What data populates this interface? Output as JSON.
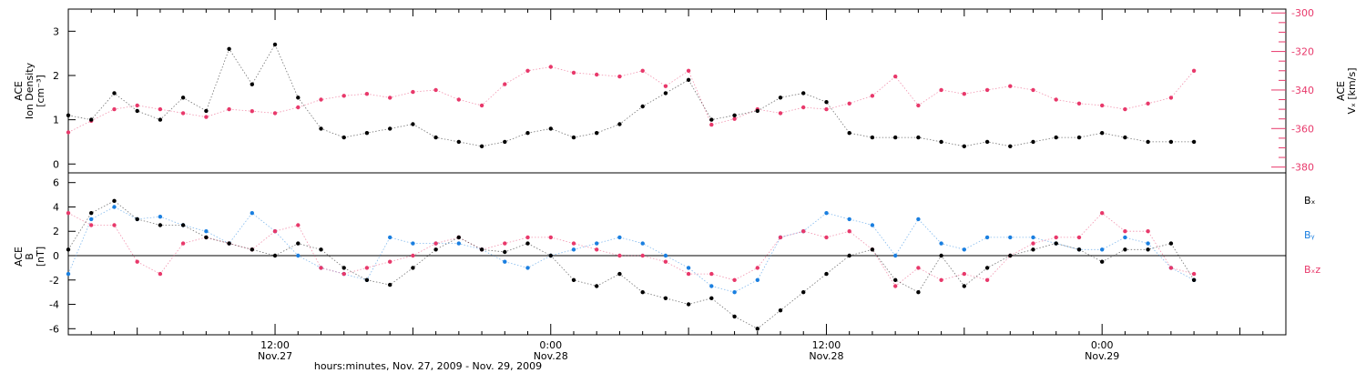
{
  "figure": {
    "x_title": "hours:minutes, Nov. 27, 2009 - Nov. 29, 2009",
    "x_ticks": [
      {
        "t": 12,
        "time": "12:00",
        "date": "Nov.27"
      },
      {
        "t": 24,
        "time": "0:00",
        "date": "Nov.28"
      },
      {
        "t": 36,
        "time": "12:00",
        "date": "Nov.28"
      },
      {
        "t": 48,
        "time": "0:00",
        "date": "Nov.29"
      }
    ],
    "x_range_hours": [
      3,
      56
    ]
  },
  "chart_data": [
    {
      "type": "scatter",
      "panel": "top",
      "ylabel_left": [
        "ACE",
        "Ion Density",
        "[cm⁻³]"
      ],
      "ylabel_right": [
        "ACE",
        "Vₓ [km/s]"
      ],
      "ylim_left": [
        -0.2,
        3.5
      ],
      "yticks_left": [
        0,
        1,
        2,
        3
      ],
      "ylim_right": [
        -383,
        -298
      ],
      "yticks_right": [
        -300,
        -320,
        -340,
        -360,
        -380
      ],
      "x_units": "hours since Nov. 27, 2009 00:00",
      "series": [
        {
          "axis": "left",
          "color": "#000000",
          "x": [
            3,
            4,
            5,
            6,
            7,
            8,
            9,
            10,
            11,
            12,
            13,
            14,
            15,
            16,
            17,
            18,
            19,
            20,
            21,
            22,
            23,
            24,
            25,
            26,
            27,
            28,
            29,
            30,
            31,
            32,
            33,
            34,
            35,
            36,
            37,
            38,
            39,
            40,
            41,
            42,
            43,
            44,
            45,
            46,
            47,
            48,
            49,
            50,
            51,
            52
          ],
          "y": [
            1.1,
            1.0,
            1.6,
            1.2,
            1.0,
            1.5,
            1.2,
            2.6,
            1.8,
            2.7,
            1.5,
            0.8,
            0.6,
            0.7,
            0.8,
            0.9,
            0.6,
            0.5,
            0.4,
            0.5,
            0.7,
            0.8,
            0.6,
            0.7,
            0.9,
            1.3,
            1.6,
            1.9,
            1.0,
            1.1,
            1.2,
            1.5,
            1.6,
            1.4,
            0.7,
            0.6,
            0.6,
            0.6,
            0.5,
            0.4,
            0.5,
            0.4,
            0.5,
            0.6,
            0.6,
            0.7,
            0.6,
            0.5,
            0.5,
            0.5
          ]
        },
        {
          "axis": "right",
          "color": "#e8396b",
          "x": [
            3,
            4,
            5,
            6,
            7,
            8,
            9,
            10,
            11,
            12,
            13,
            14,
            15,
            16,
            17,
            18,
            19,
            20,
            21,
            22,
            23,
            24,
            25,
            26,
            27,
            28,
            29,
            30,
            31,
            32,
            33,
            34,
            35,
            36,
            37,
            38,
            39,
            40,
            41,
            42,
            43,
            44,
            45,
            46,
            47,
            48,
            49,
            50,
            51,
            52
          ],
          "y": [
            -362,
            -356,
            -350,
            -348,
            -350,
            -352,
            -354,
            -350,
            -351,
            -352,
            -349,
            -345,
            -343,
            -342,
            -344,
            -341,
            -340,
            -345,
            -348,
            -337,
            -330,
            -328,
            -331,
            -332,
            -333,
            -330,
            -338,
            -330,
            -358,
            -355,
            -350,
            -352,
            -349,
            -350,
            -347,
            -343,
            -333,
            -348,
            -340,
            -342,
            -340,
            -338,
            -340,
            -345,
            -347,
            -348,
            -350,
            -347,
            -344,
            -330
          ]
        }
      ]
    },
    {
      "type": "scatter",
      "panel": "bottom",
      "ylabel_left": [
        "ACE",
        "B",
        "[nT]"
      ],
      "ylim": [
        -6.5,
        6.8
      ],
      "yticks": [
        -6,
        -4,
        -2,
        0,
        2,
        4,
        6
      ],
      "zero_line": true,
      "x_units": "hours since Nov. 27, 2009 00:00",
      "series": [
        {
          "name": "Bₓ",
          "color": "#000000",
          "x": [
            3,
            4,
            5,
            6,
            7,
            8,
            9,
            10,
            11,
            12,
            13,
            14,
            15,
            16,
            17,
            18,
            19,
            20,
            21,
            22,
            23,
            24,
            25,
            26,
            27,
            28,
            29,
            30,
            31,
            32,
            33,
            34,
            35,
            36,
            37,
            38,
            39,
            40,
            41,
            42,
            43,
            44,
            45,
            46,
            47,
            48,
            49,
            50,
            51,
            52
          ],
          "y": [
            0.5,
            3.5,
            4.5,
            3.0,
            2.5,
            2.5,
            1.5,
            1.0,
            0.5,
            0.0,
            1.0,
            0.5,
            -1.0,
            -2.0,
            -2.4,
            -1.0,
            0.5,
            1.5,
            0.5,
            0.3,
            1.0,
            0.0,
            -2.0,
            -2.5,
            -1.5,
            -3.0,
            -3.5,
            -4.0,
            -3.5,
            -5.0,
            -6.0,
            -4.5,
            -3.0,
            -1.5,
            0.0,
            0.5,
            -2.0,
            -3.0,
            0.0,
            -2.5,
            -1.0,
            0.0,
            0.5,
            1.0,
            0.5,
            -0.5,
            0.5,
            0.5,
            1.0,
            -2.0
          ]
        },
        {
          "name": "Bᵧ",
          "color": "#1a7fe0",
          "x": [
            3,
            4,
            5,
            6,
            7,
            8,
            9,
            10,
            11,
            12,
            13,
            14,
            15,
            16,
            17,
            18,
            19,
            20,
            21,
            22,
            23,
            24,
            25,
            26,
            27,
            28,
            29,
            30,
            31,
            32,
            33,
            34,
            35,
            36,
            37,
            38,
            39,
            40,
            41,
            42,
            43,
            44,
            45,
            46,
            47,
            48,
            49,
            50,
            51,
            52
          ],
          "y": [
            -1.5,
            3.0,
            4.0,
            3.0,
            3.2,
            2.5,
            2.0,
            1.0,
            3.5,
            2.0,
            0.0,
            -1.0,
            -1.5,
            -2.0,
            1.5,
            1.0,
            1.0,
            1.0,
            0.5,
            -0.5,
            -1.0,
            0.0,
            0.5,
            1.0,
            1.5,
            1.0,
            0.0,
            -1.0,
            -2.5,
            -3.0,
            -2.0,
            1.5,
            2.0,
            3.5,
            3.0,
            2.5,
            0.0,
            3.0,
            1.0,
            0.5,
            1.5,
            1.5,
            1.5,
            1.0,
            0.5,
            0.5,
            1.5,
            1.0,
            -1.0,
            -2.0
          ]
        },
        {
          "name": "Bₓz",
          "color": "#e8396b",
          "x": [
            3,
            4,
            5,
            6,
            7,
            8,
            9,
            10,
            11,
            12,
            13,
            14,
            15,
            16,
            17,
            18,
            19,
            20,
            21,
            22,
            23,
            24,
            25,
            26,
            27,
            28,
            29,
            30,
            31,
            32,
            33,
            34,
            35,
            36,
            37,
            38,
            39,
            40,
            41,
            42,
            43,
            44,
            45,
            46,
            47,
            48,
            49,
            50,
            51,
            52
          ],
          "y": [
            3.5,
            2.5,
            2.5,
            -0.5,
            -1.5,
            1.0,
            1.5,
            1.0,
            0.5,
            2.0,
            2.5,
            -1.0,
            -1.5,
            -1.0,
            -0.5,
            0.0,
            1.0,
            1.5,
            0.5,
            1.0,
            1.5,
            1.5,
            1.0,
            0.5,
            0.0,
            0.0,
            -0.5,
            -1.5,
            -1.5,
            -2.0,
            -1.0,
            1.5,
            2.0,
            1.5,
            2.0,
            0.5,
            -2.5,
            -1.0,
            -2.0,
            -1.5,
            -2.0,
            0.0,
            1.0,
            1.5,
            1.5,
            3.5,
            2.0,
            2.0,
            -1.0,
            -1.5
          ]
        }
      ],
      "legend_labels": [
        "Bₓ",
        "Bᵧ",
        "Bₓz"
      ]
    }
  ]
}
